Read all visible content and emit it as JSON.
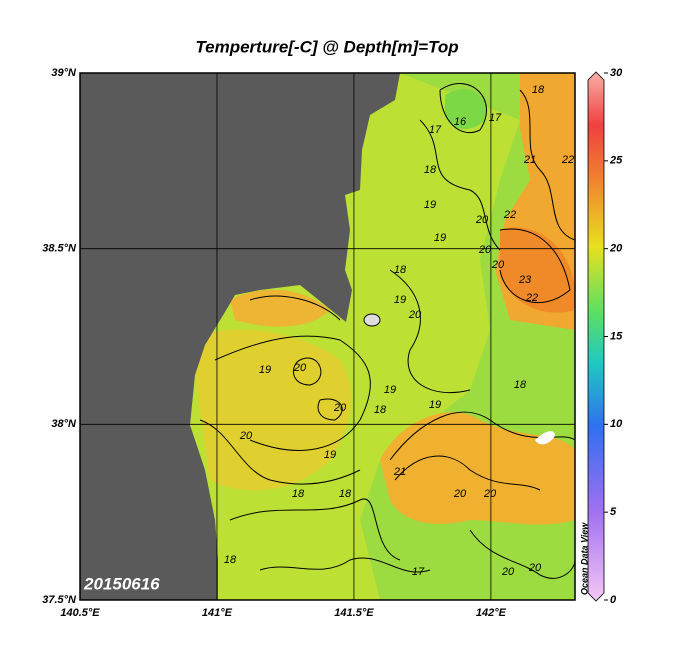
{
  "title": "Temperture[-C] @ Depth[m]=Top",
  "map": {
    "xlim": [
      140.5,
      142.307
    ],
    "ylim": [
      37.5,
      39
    ],
    "xticks": [
      {
        "value": 140.5,
        "label": "140.5°E"
      },
      {
        "value": 141,
        "label": "141°E"
      },
      {
        "value": 141.5,
        "label": "141.5°E"
      },
      {
        "value": 142,
        "label": "142°E"
      }
    ],
    "yticks": [
      {
        "value": 37.5,
        "label": "37.5°N"
      },
      {
        "value": 38,
        "label": "38°N"
      },
      {
        "value": 38.5,
        "label": "38.5°N"
      },
      {
        "value": 39,
        "label": "39°N"
      }
    ],
    "grid": true,
    "date": "20150616",
    "watermark": "Ocean Data View",
    "contour_labels": [
      16,
      17,
      17,
      18,
      18,
      19,
      20,
      21,
      22,
      22,
      23,
      22,
      19,
      20,
      20,
      18,
      19,
      20,
      19,
      20,
      20,
      19,
      18,
      18,
      19,
      21,
      20,
      20,
      18,
      18,
      19,
      20,
      17,
      20,
      20,
      18
    ]
  },
  "colorbar": {
    "ylim": [
      0,
      30
    ],
    "yticks": [
      0,
      5,
      10,
      15,
      20,
      25,
      30
    ]
  }
}
